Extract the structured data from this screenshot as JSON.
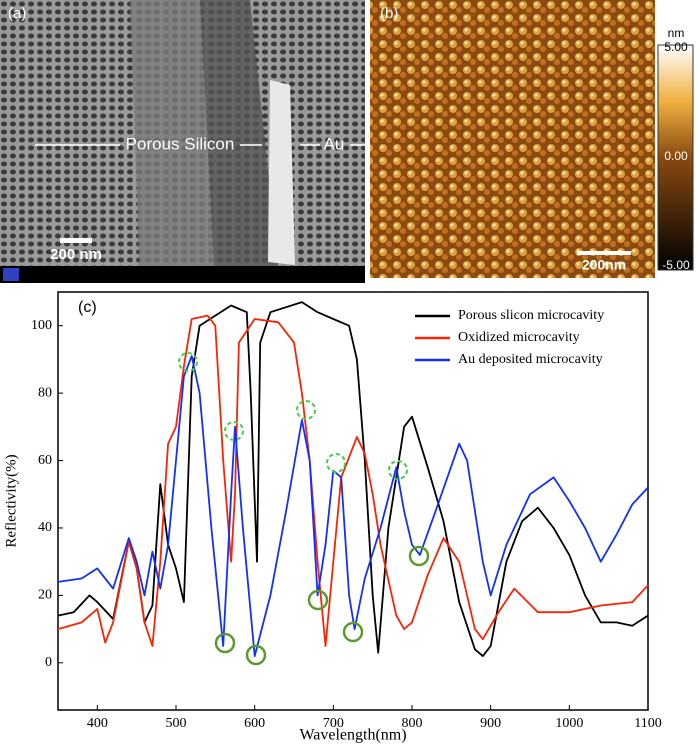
{
  "panel_a": {
    "label": "(a)",
    "text": "Porous Silicon",
    "text2": "Au",
    "scale": "200 nm"
  },
  "panel_b": {
    "label": "(b)",
    "unit": "nm",
    "colorbar_ticks": [
      "5.00",
      "0.00",
      "-5.00"
    ],
    "scale": "200nm"
  },
  "chart_data": {
    "type": "line",
    "label": "(c)",
    "xlabel": "Wavelength(nm)",
    "ylabel": "Reflectivity(%)",
    "xlim": [
      350,
      1100
    ],
    "xticks": [
      400,
      500,
      600,
      700,
      800,
      900,
      1000,
      1100
    ],
    "ylim": [
      -14,
      110
    ],
    "yticks": [
      0,
      20,
      40,
      60,
      80,
      100
    ],
    "legend": "upper right",
    "series": [
      {
        "name": "Porous slicon microcavity",
        "color": "#000000",
        "x": [
          350,
          370,
          390,
          400,
          420,
          440,
          450,
          460,
          470,
          480,
          490,
          500,
          510,
          520,
          530,
          550,
          570,
          590,
          595,
          603,
          607,
          620,
          660,
          680,
          700,
          720,
          730,
          740,
          750,
          757,
          770,
          790,
          800,
          820,
          840,
          860,
          880,
          890,
          900,
          920,
          940,
          960,
          980,
          1000,
          1020,
          1040,
          1060,
          1080,
          1100
        ],
        "values": [
          14,
          15,
          20,
          18,
          13,
          36,
          28,
          12,
          17,
          53,
          35,
          28,
          18,
          85,
          100,
          103,
          106,
          104,
          80,
          30,
          95,
          104,
          107,
          104,
          102,
          100,
          90,
          60,
          20,
          3,
          40,
          70,
          73,
          58,
          42,
          18,
          4,
          2,
          5,
          30,
          42,
          46,
          40,
          32,
          20,
          12,
          12,
          11,
          14
        ]
      },
      {
        "name": "Oxidized  microcavity",
        "color": "#ff2200",
        "x": [
          350,
          380,
          400,
          410,
          420,
          440,
          450,
          460,
          470,
          480,
          490,
          500,
          510,
          520,
          540,
          550,
          560,
          570,
          575,
          580,
          600,
          630,
          650,
          660,
          670,
          680,
          690,
          700,
          710,
          730,
          740,
          750,
          760,
          780,
          790,
          800,
          820,
          840,
          860,
          880,
          890,
          910,
          930,
          960,
          1000,
          1040,
          1080,
          1100
        ],
        "values": [
          10,
          12,
          16,
          6,
          12,
          36,
          28,
          12,
          5,
          30,
          65,
          70,
          88,
          102,
          103,
          100,
          60,
          30,
          50,
          95,
          102,
          101,
          95,
          80,
          60,
          30,
          5,
          30,
          55,
          67,
          62,
          50,
          35,
          14,
          10,
          12,
          26,
          37,
          30,
          10,
          7,
          15,
          22,
          15,
          15,
          17,
          18,
          23
        ]
      },
      {
        "name": "Au deposited microcavity",
        "color": "#1030ff",
        "x": [
          350,
          380,
          400,
          420,
          440,
          450,
          460,
          470,
          480,
          490,
          500,
          510,
          520,
          530,
          545,
          560,
          570,
          575,
          585,
          600,
          620,
          640,
          660,
          670,
          680,
          690,
          700,
          710,
          720,
          727,
          740,
          760,
          780,
          790,
          800,
          810,
          830,
          860,
          870,
          890,
          900,
          920,
          950,
          980,
          1000,
          1020,
          1040,
          1060,
          1080,
          1100
        ],
        "values": [
          24,
          25,
          28,
          22,
          37,
          30,
          20,
          33,
          22,
          35,
          60,
          85,
          91,
          80,
          40,
          5,
          50,
          70,
          40,
          2,
          20,
          45,
          72,
          60,
          20,
          35,
          57,
          55,
          20,
          10,
          25,
          40,
          58,
          45,
          35,
          32,
          45,
          65,
          60,
          30,
          20,
          35,
          50,
          55,
          48,
          40,
          30,
          38,
          47,
          52
        ]
      }
    ]
  }
}
